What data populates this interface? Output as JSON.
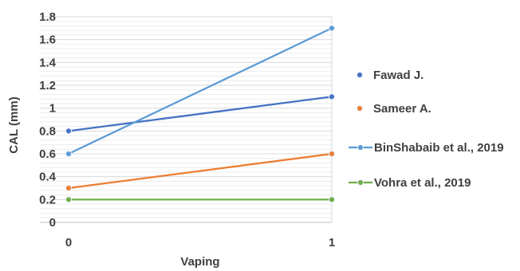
{
  "chart_data": {
    "type": "line",
    "title": "",
    "xlabel": "Vaping",
    "ylabel": "CAL (mm)",
    "x": [
      0,
      1
    ],
    "x_tick_labels": [
      "0",
      "1"
    ],
    "ylim": [
      0,
      1.8
    ],
    "y_ticks": [
      0,
      0.2,
      0.4,
      0.6,
      0.8,
      1,
      1.2,
      1.4,
      1.6,
      1.8
    ],
    "y_tick_labels": [
      "0",
      "0.2",
      "0.4",
      "0.6",
      "0.8",
      "1",
      "1.2",
      "1.4",
      "1.6",
      "1.8"
    ],
    "grid": true,
    "legend_position": "right",
    "series": [
      {
        "name": "Fawad J.",
        "values": [
          0.8,
          1.1
        ],
        "color": "#4472c4",
        "legend_style": "marker"
      },
      {
        "name": "Sameer A.",
        "values": [
          0.3,
          0.6
        ],
        "color": "#ed7d31",
        "legend_style": "marker"
      },
      {
        "name": "BinShabaib et al., 2019",
        "values": [
          0.6,
          1.7
        ],
        "color": "#5b9bd5",
        "legend_style": "line-marker"
      },
      {
        "name": "Vohra et al., 2019",
        "values": [
          0.2,
          0.2
        ],
        "color": "#70ad47",
        "legend_style": "line-marker"
      }
    ]
  }
}
